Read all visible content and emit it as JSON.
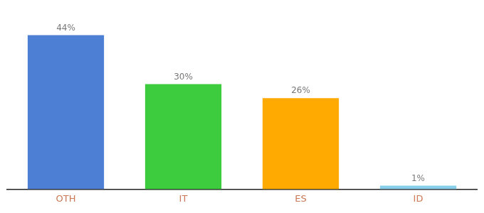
{
  "chart_data": {
    "type": "bar",
    "categories": [
      "OTH",
      "IT",
      "ES",
      "ID"
    ],
    "values": [
      44,
      30,
      26,
      1
    ],
    "value_labels": [
      "44%",
      "30%",
      "26%",
      "1%"
    ],
    "data_labels": true,
    "colors": [
      "#4d7fd4",
      "#3dcc3d",
      "#ffaa00",
      "#87ceeb"
    ],
    "ylim": [
      0,
      50
    ],
    "grid": false,
    "tick_labels": "x"
  }
}
